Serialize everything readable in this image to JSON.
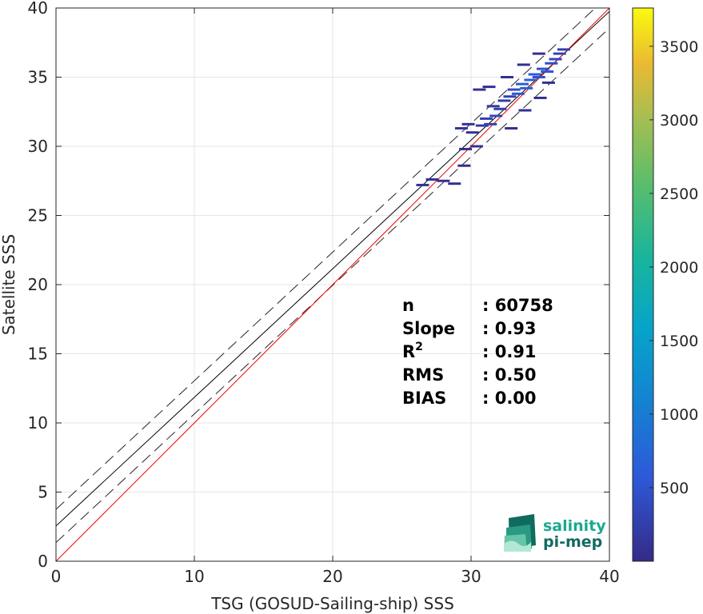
{
  "chart_data": {
    "type": "heatmap",
    "title": "",
    "xlabel": "TSG (GOSUD-Sailing-ship) SSS",
    "ylabel": "Satellite SSS",
    "xlim": [
      0,
      40
    ],
    "ylim": [
      0,
      40
    ],
    "xticks": [
      0,
      10,
      20,
      30,
      40
    ],
    "yticks": [
      0,
      5,
      10,
      15,
      20,
      25,
      30,
      35,
      40
    ],
    "grid": true,
    "colorbar": {
      "range": [
        0,
        3760
      ],
      "ticks": [
        500,
        1000,
        1500,
        2000,
        2500,
        3000,
        3500
      ],
      "colormap": "parula"
    },
    "reference_lines": {
      "identity": {
        "intercept": 0,
        "slope": 1,
        "color": "#ff0000"
      },
      "regression": {
        "intercept": 2.55,
        "slope": 0.93,
        "color": "#000000"
      },
      "upper_bound": {
        "intercept": 3.75,
        "slope": 0.93,
        "style": "dashed"
      },
      "lower_bound": {
        "intercept": 1.35,
        "slope": 0.93,
        "style": "dashed"
      }
    },
    "stats": [
      {
        "label": "n",
        "value": ": 60758"
      },
      {
        "label": "Slope",
        "value": ": 0.93"
      },
      {
        "label": "R",
        "sup": "2",
        "value": ": 0.91"
      },
      {
        "label": "RMS",
        "value": ": 0.50"
      },
      {
        "label": "BIAS",
        "value": ": 0.00"
      }
    ],
    "points": [
      [
        26.5,
        27.2,
        80
      ],
      [
        27.2,
        27.6,
        100
      ],
      [
        28.0,
        27.5,
        60
      ],
      [
        28.8,
        27.3,
        50
      ],
      [
        29.3,
        31.3,
        150
      ],
      [
        29.8,
        31.6,
        100
      ],
      [
        30.1,
        31.0,
        70
      ],
      [
        29.6,
        29.8,
        60
      ],
      [
        30.4,
        30.0,
        90
      ],
      [
        30.8,
        31.5,
        200
      ],
      [
        31.1,
        32.0,
        260
      ],
      [
        31.4,
        31.6,
        300
      ],
      [
        31.8,
        32.2,
        350
      ],
      [
        32.1,
        32.7,
        260
      ],
      [
        31.6,
        32.9,
        180
      ],
      [
        32.4,
        33.3,
        220
      ],
      [
        32.8,
        33.6,
        300
      ],
      [
        33.1,
        34.1,
        420
      ],
      [
        33.4,
        33.8,
        520
      ],
      [
        33.7,
        34.5,
        600
      ],
      [
        34.0,
        34.2,
        700
      ],
      [
        34.3,
        34.8,
        650
      ],
      [
        34.6,
        35.2,
        550
      ],
      [
        34.9,
        35.0,
        480
      ],
      [
        35.2,
        35.6,
        450
      ],
      [
        35.5,
        35.4,
        520
      ],
      [
        35.8,
        36.0,
        420
      ],
      [
        36.1,
        36.3,
        350
      ],
      [
        36.4,
        36.7,
        300
      ],
      [
        36.7,
        37.0,
        250
      ],
      [
        30.6,
        34.1,
        80
      ],
      [
        31.3,
        34.3,
        60
      ],
      [
        32.6,
        35.0,
        70
      ],
      [
        33.8,
        35.9,
        60
      ],
      [
        34.9,
        36.7,
        50
      ],
      [
        32.9,
        31.3,
        60
      ],
      [
        33.9,
        32.6,
        70
      ],
      [
        35.0,
        33.5,
        50
      ],
      [
        35.6,
        34.6,
        80
      ],
      [
        29.5,
        28.6,
        40
      ]
    ]
  },
  "branding": {
    "logo_line1": "salinity",
    "logo_line2": "pi-mep"
  }
}
